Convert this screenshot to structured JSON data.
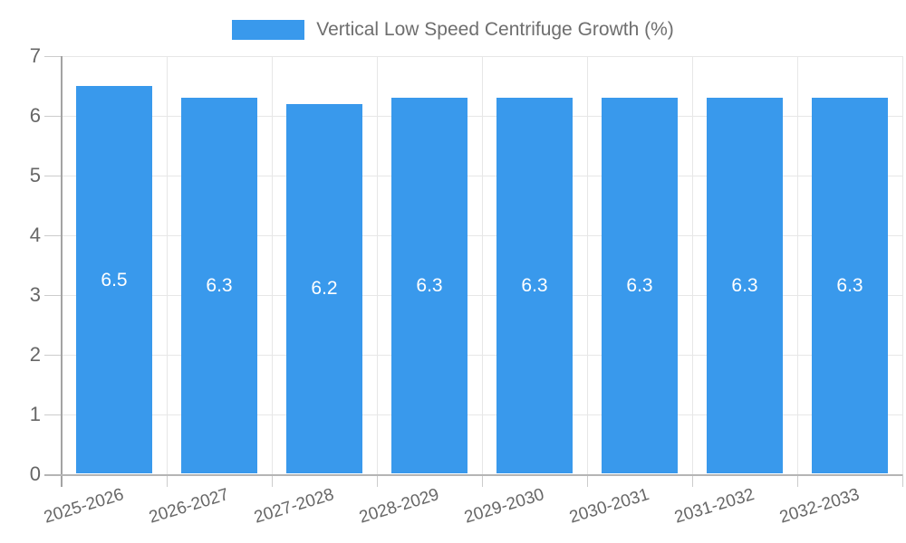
{
  "legend": {
    "series_label": "Vertical Low Speed Centrifuge Growth (%)"
  },
  "chart_data": {
    "type": "bar",
    "title": "Vertical Low Speed Centrifuge Growth (%)",
    "categories": [
      "2025-2026",
      "2026-2027",
      "2027-2028",
      "2028-2029",
      "2029-2030",
      "2030-2031",
      "2031-2032",
      "2032-2033"
    ],
    "values": [
      6.5,
      6.3,
      6.2,
      6.3,
      6.3,
      6.3,
      6.3,
      6.3
    ],
    "value_labels": [
      "6.5",
      "6.3",
      "6.2",
      "6.3",
      "6.3",
      "6.3",
      "6.3",
      "6.3"
    ],
    "xlabel": "",
    "ylabel": "",
    "ylim": [
      0,
      7
    ],
    "yticks": [
      0,
      1,
      2,
      3,
      4,
      5,
      6,
      7
    ],
    "grid": true,
    "legend_position": "top",
    "bar_color": "#3999ec",
    "value_label_color": "#ffffff",
    "axis_label_color": "#666666"
  }
}
